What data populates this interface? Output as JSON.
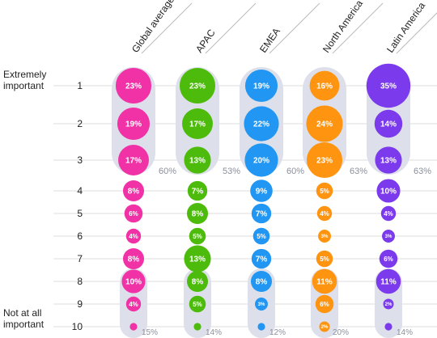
{
  "chart_data": {
    "type": "bubble-matrix",
    "y_top_label": [
      "Extremely",
      "important"
    ],
    "y_bottom_label": [
      "Not at all",
      "important"
    ],
    "ranks": [
      "1",
      "2",
      "3",
      "4",
      "5",
      "6",
      "7",
      "8",
      "9",
      "10"
    ],
    "series": [
      {
        "name": "Global average",
        "color": "#f032a6",
        "labels": [
          "23%",
          "19%",
          "17%",
          "8%",
          "6%",
          "4%",
          "8%",
          "10%",
          "4%",
          ""
        ],
        "values": [
          23,
          19,
          17,
          8,
          6,
          4,
          8,
          10,
          4,
          1
        ],
        "top3_total": "60%",
        "bottom3_total": "15%"
      },
      {
        "name": "APAC",
        "color": "#4dbb0c",
        "labels": [
          "23%",
          "17%",
          "13%",
          "7%",
          "8%",
          "5%",
          "13%",
          "8%",
          "5%",
          ""
        ],
        "values": [
          23,
          17,
          13,
          7,
          8,
          5,
          13,
          8,
          5,
          1
        ],
        "top3_total": "53%",
        "bottom3_total": "14%"
      },
      {
        "name": "EMEA",
        "color": "#2196f3",
        "labels": [
          "19%",
          "22%",
          "20%",
          "9%",
          "7%",
          "5%",
          "7%",
          "8%",
          "3%",
          ""
        ],
        "values": [
          19,
          22,
          20,
          9,
          7,
          5,
          7,
          8,
          3,
          1
        ],
        "top3_total": "60%",
        "bottom3_total": "12%"
      },
      {
        "name": "North America",
        "color": "#ff9410",
        "labels": [
          "16%",
          "24%",
          "23%",
          "5%",
          "4%",
          "3%",
          "5%",
          "11%",
          "6%",
          "2%"
        ],
        "values": [
          16,
          24,
          23,
          5,
          4,
          3,
          5,
          11,
          6,
          2
        ],
        "top3_total": "63%",
        "bottom3_total": "20%"
      },
      {
        "name": "Latin America",
        "color": "#7c3aed",
        "labels": [
          "35%",
          "14%",
          "13%",
          "10%",
          "4%",
          "3%",
          "6%",
          "11%",
          "2%",
          ""
        ],
        "values": [
          35,
          14,
          13,
          10,
          4,
          3,
          6,
          11,
          2,
          1
        ],
        "top3_total": "63%",
        "bottom3_total": "14%"
      }
    ]
  }
}
